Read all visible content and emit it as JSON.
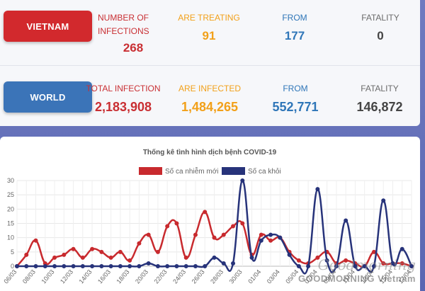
{
  "vietnam": {
    "label": "VIETNAM",
    "number_of_infections_label": "NUMBER OF INFECTIONS",
    "number_of_infections": "268",
    "are_treating_label": "ARE TREATING",
    "are_treating": "91",
    "from_label": "FROM",
    "from": "177",
    "fatality_label": "FATALITY",
    "fatality": "0"
  },
  "world": {
    "label": "WORLD",
    "total_infection_label": "TOTAL INFECTION",
    "total_infection": "2,183,908",
    "are_infected_label": "ARE INFECTED",
    "are_infected": "1,484,265",
    "from_label": "FROM",
    "from": "552,771",
    "fatality_label": "FATALITY",
    "fatality": "146,872"
  },
  "colors": {
    "red": "#d2292d",
    "blue": "#3b74b8",
    "orange": "#f2a019",
    "series_new": "#c82a2e",
    "series_recovered": "#27337a"
  },
  "watermark": {
    "script": "Goodmorning",
    "text": "GOODMORNING Vietnam"
  },
  "chart_data": {
    "type": "line",
    "title": "Thống kê tình hình dịch bệnh COVID-19",
    "legend_position": "top",
    "ylim": [
      0,
      30
    ],
    "yticks": [
      0,
      5,
      10,
      15,
      20,
      25,
      30
    ],
    "grid": true,
    "tick_labels": [
      "06/03",
      "08/03",
      "10/03",
      "12/03",
      "14/03",
      "16/03",
      "18/03",
      "20/03",
      "22/03",
      "24/03",
      "26/03",
      "28/03",
      "30/03",
      "01/04",
      "03/04",
      "05/04",
      "07/04",
      "09/04",
      "11/04",
      "13/04",
      "15/04",
      "17/04"
    ],
    "x": [
      "06/03",
      "07/03",
      "08/03",
      "09/03",
      "10/03",
      "11/03",
      "12/03",
      "13/03",
      "14/03",
      "15/03",
      "16/03",
      "17/03",
      "18/03",
      "19/03",
      "20/03",
      "21/03",
      "22/03",
      "23/03",
      "24/03",
      "25/03",
      "26/03",
      "27/03",
      "28/03",
      "29/03",
      "30/03",
      "31/03",
      "01/04",
      "02/04",
      "03/04",
      "04/04",
      "05/04",
      "06/04",
      "07/04",
      "08/04",
      "09/04",
      "10/04",
      "11/04",
      "12/04",
      "13/04",
      "14/04",
      "15/04",
      "16/04",
      "17/04"
    ],
    "series": [
      {
        "name": "Số ca nhiễm mới",
        "values": [
          0,
          4,
          9,
          1,
          3,
          4,
          6,
          3,
          6,
          5,
          3,
          5,
          2,
          8,
          11,
          5,
          14,
          15,
          3,
          11,
          19,
          10,
          11,
          14,
          15,
          4,
          11,
          9,
          10,
          5,
          2,
          1,
          3,
          5,
          1,
          2,
          1,
          0,
          5,
          1,
          1,
          1,
          0
        ]
      },
      {
        "name": "Số ca khỏi",
        "values": [
          0,
          0,
          0,
          0,
          0,
          0,
          0,
          0,
          0,
          0,
          0,
          0,
          0,
          0,
          1,
          0,
          0,
          0,
          0,
          0,
          0,
          3,
          1,
          1,
          30,
          3,
          9,
          11,
          10,
          4,
          0,
          0,
          27,
          2,
          0,
          16,
          0,
          0,
          0,
          23,
          1,
          6,
          0
        ]
      }
    ]
  }
}
